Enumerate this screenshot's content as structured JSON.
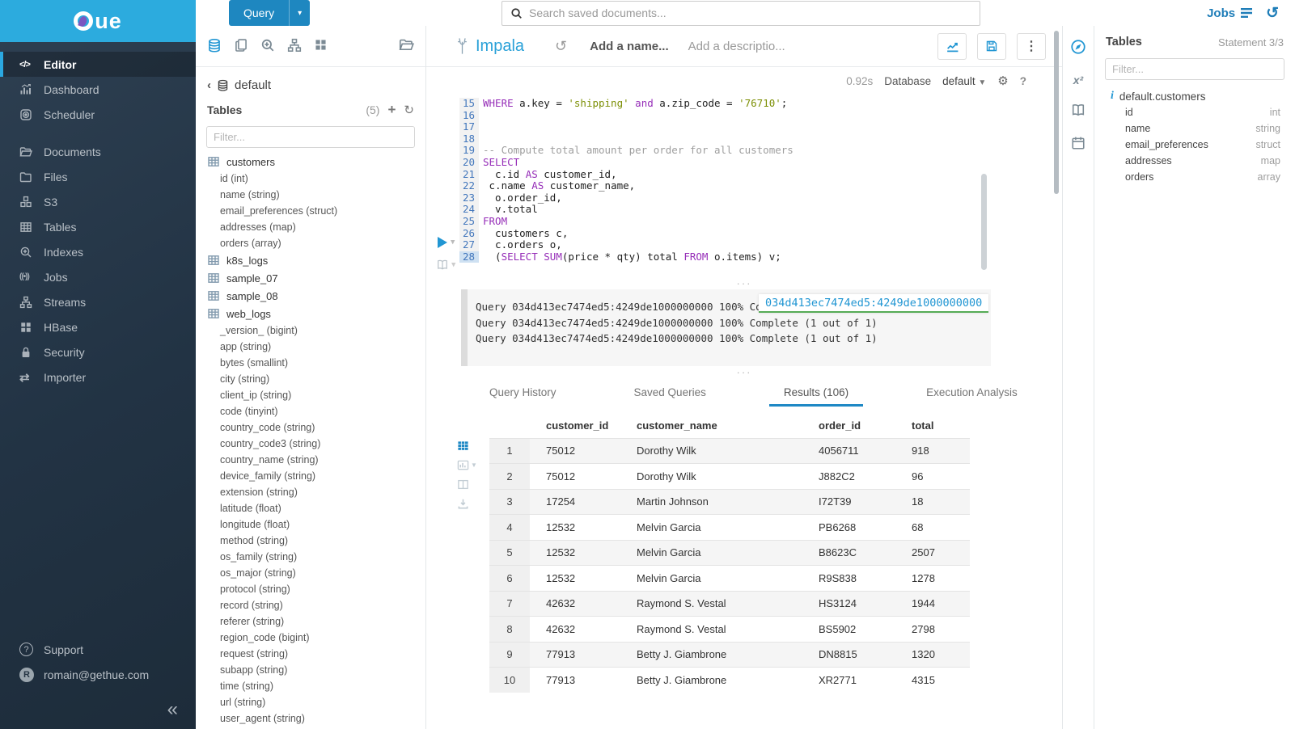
{
  "brand": {
    "alt": "Hue",
    "wordmark": "ue"
  },
  "topbar": {
    "query_label": "Query",
    "search_placeholder": "Search saved documents...",
    "jobs_label": "Jobs"
  },
  "sidebar": {
    "items": [
      {
        "label": "Editor",
        "icon": "code-icon",
        "active": true
      },
      {
        "label": "Dashboard",
        "icon": "dashboard-icon"
      },
      {
        "label": "Scheduler",
        "icon": "scheduler-icon"
      },
      {
        "label": "Documents",
        "icon": "documents-icon",
        "gap": true
      },
      {
        "label": "Files",
        "icon": "folder-icon"
      },
      {
        "label": "S3",
        "icon": "s3-icon"
      },
      {
        "label": "Tables",
        "icon": "tables-icon"
      },
      {
        "label": "Indexes",
        "icon": "indexes-icon"
      },
      {
        "label": "Jobs",
        "icon": "jobs-icon"
      },
      {
        "label": "Streams",
        "icon": "streams-icon"
      },
      {
        "label": "HBase",
        "icon": "hbase-icon"
      },
      {
        "label": "Security",
        "icon": "security-icon"
      },
      {
        "label": "Importer",
        "icon": "importer-icon"
      }
    ],
    "bottom": [
      {
        "label": "Support",
        "icon": "support-icon"
      },
      {
        "label": "romain@gethue.com",
        "icon": "avatar",
        "avatar": "R"
      }
    ],
    "collapse_glyph": "«"
  },
  "dbpanel": {
    "toolbar_icons": [
      "database-icon",
      "copy-icon",
      "zoom-in-icon",
      "sitemap-icon",
      "grid-icon"
    ],
    "toolbar_right_icon": "folder-open-icon",
    "back_glyph": "‹",
    "database": "default",
    "tables_label": "Tables",
    "count": "(5)",
    "plus_glyph": "+",
    "refresh_glyph": "↻",
    "filter_placeholder": "Filter...",
    "tables": [
      {
        "name": "customers",
        "columns": [
          "id (int)",
          "name (string)",
          "email_preferences (struct)",
          "addresses (map)",
          "orders (array)"
        ]
      },
      {
        "name": "k8s_logs",
        "columns": []
      },
      {
        "name": "sample_07",
        "columns": []
      },
      {
        "name": "sample_08",
        "columns": []
      },
      {
        "name": "web_logs",
        "columns": [
          "_version_ (bigint)",
          "app (string)",
          "bytes (smallint)",
          "city (string)",
          "client_ip (string)",
          "code (tinyint)",
          "country_code (string)",
          "country_code3 (string)",
          "country_name (string)",
          "device_family (string)",
          "extension (string)",
          "latitude (float)",
          "longitude (float)",
          "method (string)",
          "os_family (string)",
          "os_major (string)",
          "protocol (string)",
          "record (string)",
          "referer (string)",
          "region_code (bigint)",
          "request (string)",
          "subapp (string)",
          "time (string)",
          "url (string)",
          "user_agent (string)"
        ]
      }
    ]
  },
  "editor": {
    "engine": "Impala",
    "history_glyph": "↺",
    "name_placeholder": "Add a name...",
    "description_placeholder": "Add a descriptio...",
    "exec_time": "0.92s",
    "database_label": "Database",
    "database_value": "default",
    "gear_glyph": "⚙",
    "help_glyph": "?",
    "code_lines": [
      {
        "n": "15",
        "segs": [
          [
            "k",
            "WHERE"
          ],
          [
            "t",
            " a.key = "
          ],
          [
            "s",
            "'shipping'"
          ],
          [
            "t",
            " "
          ],
          [
            "k",
            "and"
          ],
          [
            "t",
            " a.zip_code = "
          ],
          [
            "s",
            "'76710'"
          ],
          [
            "t",
            ";"
          ]
        ]
      },
      {
        "n": "16",
        "segs": []
      },
      {
        "n": "17",
        "segs": []
      },
      {
        "n": "18",
        "segs": []
      },
      {
        "n": "19",
        "segs": [
          [
            "c",
            "-- Compute total amount per order for all customers"
          ]
        ]
      },
      {
        "n": "20",
        "segs": [
          [
            "k",
            "SELECT"
          ]
        ]
      },
      {
        "n": "21",
        "segs": [
          [
            "t",
            "  c.id "
          ],
          [
            "k",
            "AS"
          ],
          [
            "t",
            " customer_id,"
          ]
        ]
      },
      {
        "n": "22",
        "segs": [
          [
            "t",
            " c.name "
          ],
          [
            "k",
            "AS"
          ],
          [
            "t",
            " customer_name,"
          ]
        ]
      },
      {
        "n": "23",
        "segs": [
          [
            "t",
            "  o.order_id,"
          ]
        ]
      },
      {
        "n": "24",
        "segs": [
          [
            "t",
            "  v.total"
          ]
        ]
      },
      {
        "n": "25",
        "segs": [
          [
            "k",
            "FROM"
          ]
        ]
      },
      {
        "n": "26",
        "segs": [
          [
            "t",
            "  customers c,"
          ]
        ]
      },
      {
        "n": "27",
        "segs": [
          [
            "t",
            "  c.orders o,"
          ]
        ]
      },
      {
        "n": "28",
        "segs": [
          [
            "t",
            "  ("
          ],
          [
            "k",
            "SELECT"
          ],
          [
            "t",
            " "
          ],
          [
            "k",
            "SUM"
          ],
          [
            "t",
            "(price * qty) total "
          ],
          [
            "k",
            "FROM"
          ],
          [
            "t",
            " o.items) v;"
          ]
        ],
        "current": true
      }
    ],
    "grip_glyph": "···"
  },
  "log": {
    "lines": [
      "Query 034d413ec7474ed5:4249de1000000000 100% Complete (1 out of 1)",
      "Query 034d413ec7474ed5:4249de1000000000 100% Complete (1 out of 1)",
      "Query 034d413ec7474ed5:4249de1000000000 100% Complete (1 out of 1)"
    ],
    "tooltip": "034d413ec7474ed5:4249de1000000000"
  },
  "tabs": [
    {
      "label": "Query History"
    },
    {
      "label": "Saved Queries"
    },
    {
      "label": "Results (106)",
      "active": true
    },
    {
      "label": "Execution Analysis"
    }
  ],
  "results": {
    "toolbar_icons": [
      "grid3-icon",
      "bar-chart-icon",
      "columns-icon",
      "download-icon"
    ],
    "columns": [
      "customer_id",
      "customer_name",
      "order_id",
      "total"
    ],
    "rows": [
      [
        "1",
        "75012",
        "Dorothy Wilk",
        "4056711",
        "918"
      ],
      [
        "2",
        "75012",
        "Dorothy Wilk",
        "J882C2",
        "96"
      ],
      [
        "3",
        "17254",
        "Martin Johnson",
        "I72T39",
        "18"
      ],
      [
        "4",
        "12532",
        "Melvin Garcia",
        "PB6268",
        "68"
      ],
      [
        "5",
        "12532",
        "Melvin Garcia",
        "B8623C",
        "2507"
      ],
      [
        "6",
        "12532",
        "Melvin Garcia",
        "R9S838",
        "1278"
      ],
      [
        "7",
        "42632",
        "Raymond S. Vestal",
        "HS3124",
        "1944"
      ],
      [
        "8",
        "42632",
        "Raymond S. Vestal",
        "BS5902",
        "2798"
      ],
      [
        "9",
        "77913",
        "Betty J. Giambrone",
        "DN8815",
        "1320"
      ],
      [
        "10",
        "77913",
        "Betty J. Giambrone",
        "XR2771",
        "4315"
      ]
    ]
  },
  "assist": {
    "strip_icons": [
      "compass-icon",
      "functions-icon",
      "language-ref-icon",
      "schedule-icon"
    ],
    "title": "Tables",
    "statement": "Statement 3/3",
    "filter_placeholder": "Filter...",
    "table": "default.customers",
    "columns": [
      {
        "name": "id",
        "type": "int"
      },
      {
        "name": "name",
        "type": "string"
      },
      {
        "name": "email_preferences",
        "type": "struct"
      },
      {
        "name": "addresses",
        "type": "map"
      },
      {
        "name": "orders",
        "type": "array"
      }
    ]
  }
}
